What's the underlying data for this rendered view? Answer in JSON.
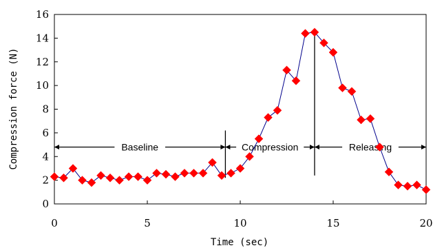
{
  "chart_data": {
    "type": "line",
    "title": "",
    "xlabel": "Time (sec)",
    "ylabel": "Compression force (N)",
    "xlim": [
      0,
      20
    ],
    "ylim": [
      0,
      16
    ],
    "xticks": [
      0,
      5,
      10,
      15,
      20
    ],
    "yticks": [
      0,
      2,
      4,
      6,
      8,
      10,
      12,
      14,
      16
    ],
    "grid": false,
    "legend": "none",
    "colors": {
      "line": "#00008b",
      "marker": "#ff0000"
    },
    "marker": "diamond",
    "series": [
      {
        "x": [
          0,
          0.5,
          1,
          1.5,
          2,
          2.5,
          3,
          3.5,
          4,
          4.5,
          5,
          5.5,
          6,
          6.5,
          7,
          7.5,
          8,
          8.5,
          9,
          9.5,
          10,
          10.5,
          11,
          11.5,
          12,
          12.5,
          13,
          13.5,
          14,
          14.5,
          15,
          15.5,
          16,
          16.5,
          17,
          17.5,
          18,
          18.5,
          19,
          19.5,
          20
        ],
        "y": [
          2.3,
          2.2,
          3.0,
          2.0,
          1.8,
          2.4,
          2.2,
          2.0,
          2.3,
          2.3,
          2.0,
          2.6,
          2.5,
          2.3,
          2.6,
          2.6,
          2.6,
          3.5,
          2.4,
          2.6,
          3.0,
          4.0,
          5.5,
          7.3,
          7.9,
          11.3,
          10.4,
          14.4,
          14.5,
          13.6,
          12.8,
          9.8,
          9.5,
          7.1,
          7.2,
          4.8,
          2.7,
          1.6,
          1.5,
          1.6,
          1.2
        ]
      }
    ],
    "phases": [
      {
        "label": "Baseline",
        "from": 0,
        "to": 9.2,
        "y": 4.8
      },
      {
        "label": "Compression",
        "from": 9.2,
        "to": 14,
        "y": 4.8
      },
      {
        "label": "Releasing",
        "from": 14,
        "to": 20,
        "y": 4.8
      }
    ],
    "dividers": [
      {
        "x": 9.2,
        "y_from": 2.2,
        "y_to": 6.2
      },
      {
        "x": 14,
        "y_from": 2.4,
        "y_to": 14.6
      }
    ]
  }
}
